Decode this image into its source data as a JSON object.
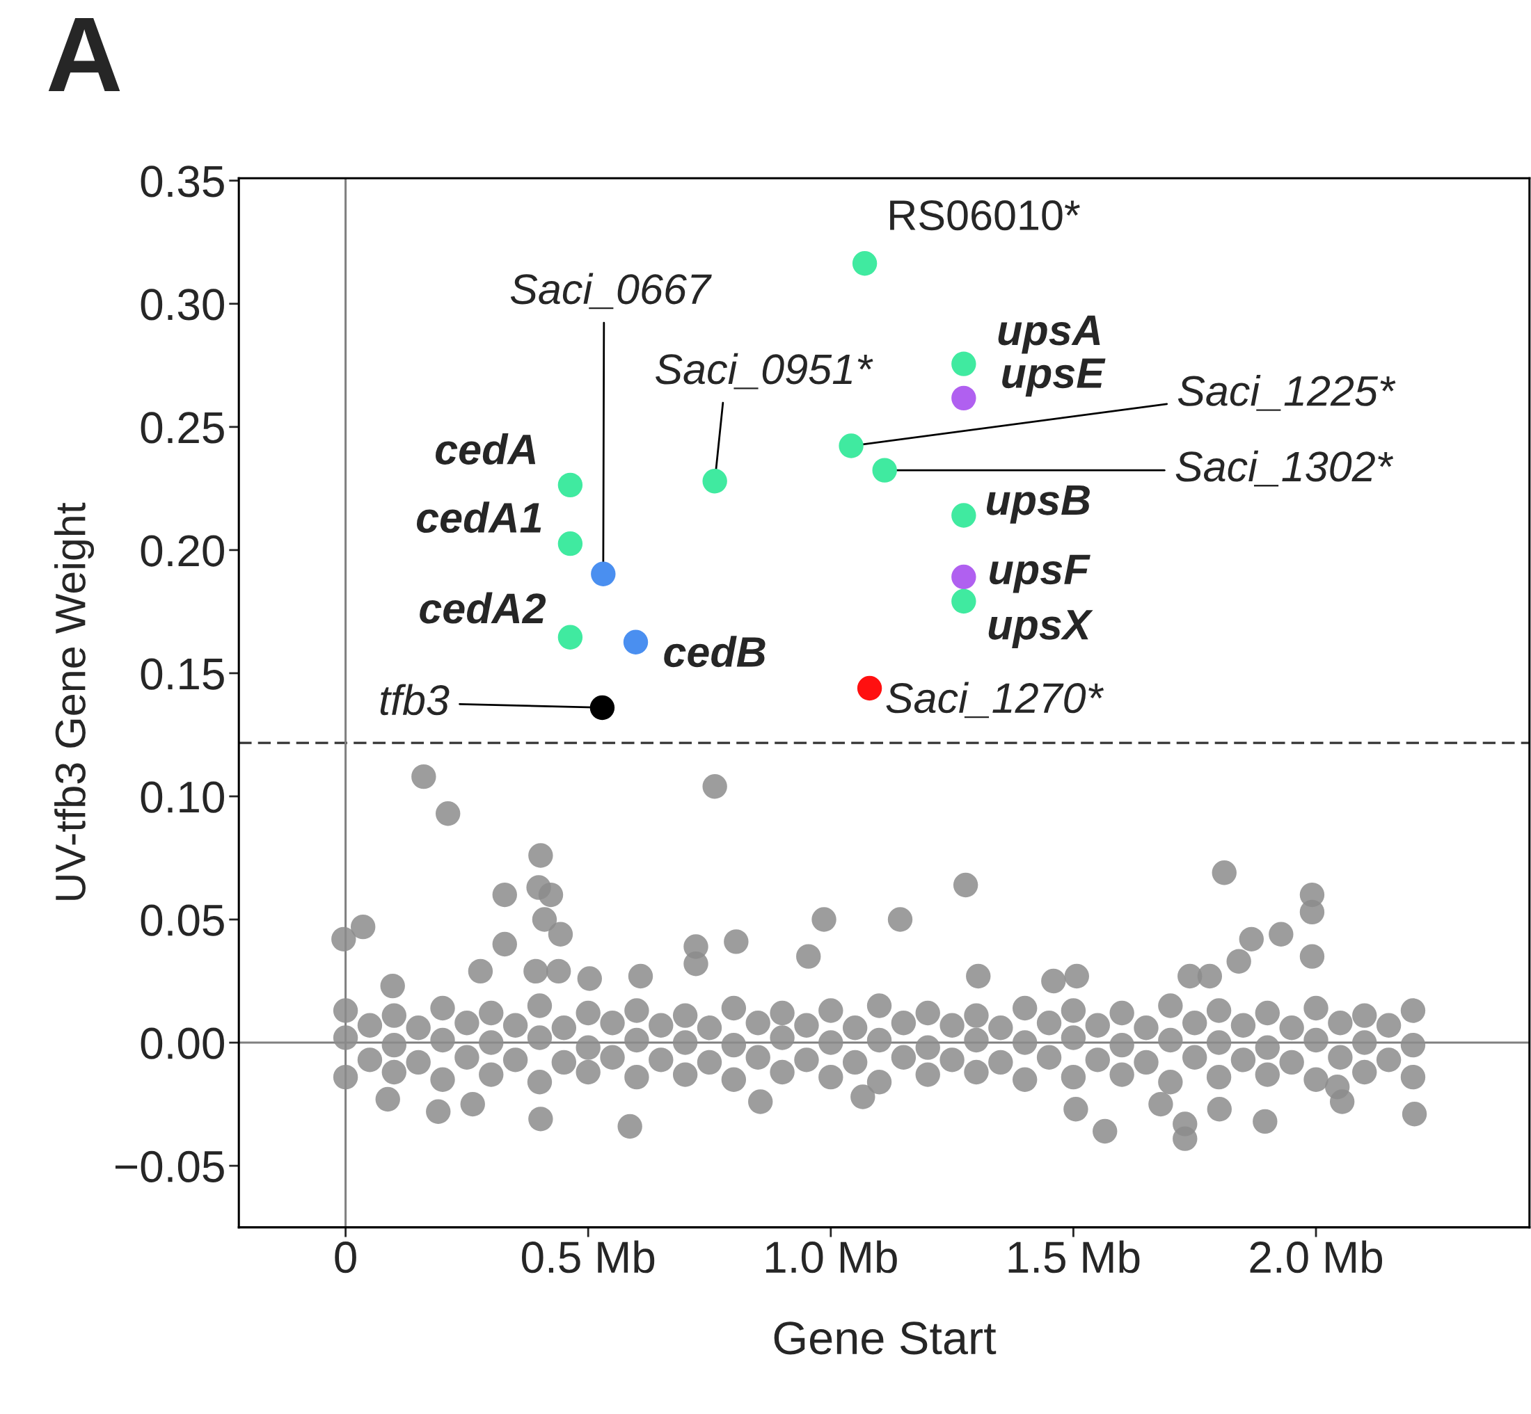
{
  "chart_data": {
    "type": "scatter",
    "title": "A",
    "xlabel": "Gene Start",
    "ylabel": "UV-tfb3 Gene Weight",
    "xlim": [
      -0.22,
      2.44
    ],
    "ylim": [
      -0.075,
      0.351
    ],
    "xticks": [
      0,
      {
        "value": 0.5,
        "label": "0.5 Mb"
      },
      {
        "value": 1.0,
        "label": "1.0 Mb"
      },
      {
        "value": 1.5,
        "label": "1.5 Mb"
      },
      {
        "value": 2.0,
        "label": "2.0 Mb"
      }
    ],
    "yticks": [
      {
        "value": -0.05,
        "label": "−0.05"
      },
      {
        "value": 0,
        "label": "0.00"
      },
      {
        "value": 0.05,
        "label": "0.05"
      },
      {
        "value": 0.1,
        "label": "0.10"
      },
      {
        "value": 0.15,
        "label": "0.15"
      },
      {
        "value": 0.2,
        "label": "0.20"
      },
      {
        "value": 0.25,
        "label": "0.25"
      },
      {
        "value": 0.3,
        "label": "0.30"
      },
      {
        "value": 0.35,
        "label": "0.35"
      }
    ],
    "grid": false,
    "legend": false,
    "marker": "circle",
    "ref_lines": [
      {
        "axis": "y",
        "value": 0.1217,
        "color": "#333333",
        "line_style": "dashed"
      },
      {
        "axis": "y",
        "value": 0,
        "color": "#808080",
        "line_style": "solid"
      },
      {
        "axis": "x",
        "value": 0,
        "color": "#808080",
        "line_style": "solid"
      }
    ],
    "series": [
      {
        "color": "#8c8c8c",
        "x": [
          -0.004,
          0.036,
          0.161,
          0.211,
          0.761,
          0.402,
          0.398,
          0.423,
          0.328,
          0.328,
          0.41,
          0.443,
          0.392,
          0.439,
          0.278,
          0.097,
          0.503,
          0.608,
          0.722,
          0.722,
          0.805,
          0.954,
          0.986,
          1.143,
          1.278,
          1.304,
          1.459,
          1.507,
          1.811,
          1.841,
          1.867,
          1.928,
          1.992,
          1.992,
          1.992,
          1.781,
          1.74,
          0.087,
          0.191,
          0.262,
          0.402,
          0.586,
          0.855,
          1.066,
          1.505,
          1.565,
          1.73,
          1.73,
          1.68,
          1.801,
          1.895,
          2.054,
          2.203,
          2.044
        ],
        "values": [
          0.042,
          0.047,
          0.108,
          0.093,
          0.104,
          0.076,
          0.063,
          0.06,
          0.06,
          0.04,
          0.05,
          0.044,
          0.029,
          0.029,
          0.029,
          0.023,
          0.026,
          0.027,
          0.039,
          0.032,
          0.041,
          0.035,
          0.05,
          0.05,
          0.064,
          0.027,
          0.025,
          0.027,
          0.069,
          0.033,
          0.042,
          0.044,
          0.06,
          0.053,
          0.035,
          0.027,
          0.027,
          -0.023,
          -0.028,
          -0.025,
          -0.031,
          -0.034,
          -0.024,
          -0.022,
          -0.027,
          -0.036,
          -0.039,
          -0.033,
          -0.025,
          -0.027,
          -0.032,
          -0.024,
          -0.029,
          -0.018
        ]
      },
      {
        "color": "#8c8c8c",
        "x": [
          0.0,
          0.1,
          0.2,
          0.3,
          0.4,
          0.5,
          0.6,
          0.7,
          0.8,
          0.9,
          1.0,
          1.1,
          1.2,
          1.3,
          1.4,
          1.5,
          1.6,
          1.7,
          1.8,
          1.9,
          2.0,
          2.1,
          2.2
        ],
        "values": [
          0.013,
          0.011,
          0.014,
          0.012,
          0.015,
          0.012,
          0.013,
          0.011,
          0.014,
          0.012,
          0.013,
          0.015,
          0.012,
          0.011,
          0.014,
          0.013,
          0.012,
          0.015,
          0.013,
          0.012,
          0.014,
          0.011,
          0.013
        ]
      },
      {
        "color": "#8c8c8c",
        "x": [
          0.0,
          0.1,
          0.2,
          0.3,
          0.4,
          0.5,
          0.6,
          0.7,
          0.8,
          0.9,
          1.0,
          1.1,
          1.2,
          1.3,
          1.4,
          1.5,
          1.6,
          1.7,
          1.8,
          1.9,
          2.0,
          2.1,
          2.2
        ],
        "values": [
          -0.014,
          -0.012,
          -0.015,
          -0.013,
          -0.016,
          -0.012,
          -0.014,
          -0.013,
          -0.015,
          -0.012,
          -0.014,
          -0.016,
          -0.013,
          -0.012,
          -0.015,
          -0.014,
          -0.013,
          -0.016,
          -0.014,
          -0.013,
          -0.015,
          -0.012,
          -0.014
        ]
      },
      {
        "color": "#8c8c8c",
        "x": [
          0.0,
          0.1,
          0.2,
          0.3,
          0.4,
          0.5,
          0.6,
          0.7,
          0.8,
          0.9,
          1.0,
          1.1,
          1.2,
          1.3,
          1.4,
          1.5,
          1.6,
          1.7,
          1.8,
          1.9,
          2.0,
          2.1,
          2.2
        ],
        "values": [
          0.002,
          -0.001,
          0.001,
          0.0,
          0.002,
          -0.002,
          0.001,
          0.0,
          -0.001,
          0.002,
          0.0,
          0.001,
          -0.002,
          0.001,
          0.0,
          0.002,
          -0.001,
          0.001,
          0.0,
          -0.002,
          0.001,
          0.0,
          -0.001
        ]
      },
      {
        "color": "#8c8c8c",
        "x": [
          0.05,
          0.15,
          0.25,
          0.35,
          0.45,
          0.55,
          0.65,
          0.75,
          0.85,
          0.95,
          1.05,
          1.15,
          1.25,
          1.35,
          1.45,
          1.55,
          1.65,
          1.75,
          1.85,
          1.95,
          2.05,
          2.15
        ],
        "values": [
          0.007,
          0.006,
          0.008,
          0.007,
          0.006,
          0.008,
          0.007,
          0.006,
          0.008,
          0.007,
          0.006,
          0.008,
          0.007,
          0.006,
          0.008,
          0.007,
          0.006,
          0.008,
          0.007,
          0.006,
          0.008,
          0.007
        ]
      },
      {
        "color": "#8c8c8c",
        "x": [
          0.05,
          0.15,
          0.25,
          0.35,
          0.45,
          0.55,
          0.65,
          0.75,
          0.85,
          0.95,
          1.05,
          1.15,
          1.25,
          1.35,
          1.45,
          1.55,
          1.65,
          1.75,
          1.85,
          1.95,
          2.05,
          2.15
        ],
        "values": [
          -0.007,
          -0.008,
          -0.006,
          -0.007,
          -0.008,
          -0.006,
          -0.007,
          -0.008,
          -0.006,
          -0.007,
          -0.008,
          -0.006,
          -0.007,
          -0.008,
          -0.006,
          -0.007,
          -0.008,
          -0.006,
          -0.007,
          -0.008,
          -0.006,
          -0.007
        ]
      },
      {
        "x": [
          1.07,
          1.274,
          1.274,
          1.042,
          1.111,
          0.761,
          0.463,
          0.463,
          0.531,
          1.274,
          1.274,
          1.274,
          0.463,
          0.598,
          1.08,
          0.529
        ],
        "values": [
          0.3164,
          0.2756,
          0.2617,
          0.2423,
          0.2324,
          0.228,
          0.2264,
          0.2026,
          0.1903,
          0.2141,
          0.1891,
          0.1792,
          0.1646,
          0.1626,
          0.1439,
          0.136
        ],
        "colors": [
          "#40eaa0",
          "#40eaa0",
          "#b060f0",
          "#40eaa0",
          "#40eaa0",
          "#40eaa0",
          "#40eaa0",
          "#40eaa0",
          "#4a8ff0",
          "#40eaa0",
          "#b060f0",
          "#40eaa0",
          "#40eaa0",
          "#4a8ff0",
          "#ff1010",
          "#000000"
        ]
      }
    ],
    "annotations": [
      {
        "text": "RS06010*",
        "x": 1.07,
        "y": 0.3164
      },
      {
        "text": "upsA",
        "x": 1.274,
        "y": 0.2756
      },
      {
        "text": "upsE",
        "x": 1.274,
        "y": 0.2617
      },
      {
        "text": "Saci_1225*",
        "x": 1.042,
        "y": 0.2423
      },
      {
        "text": "Saci_1302*",
        "x": 1.111,
        "y": 0.2324
      },
      {
        "text": "Saci_0951*",
        "x": 0.761,
        "y": 0.228
      },
      {
        "text": "cedA",
        "x": 0.463,
        "y": 0.2264
      },
      {
        "text": "cedA1",
        "x": 0.463,
        "y": 0.2026
      },
      {
        "text": "Saci_0667",
        "x": 0.531,
        "y": 0.1903
      },
      {
        "text": "upsB",
        "x": 1.274,
        "y": 0.2141
      },
      {
        "text": "upsF",
        "x": 1.274,
        "y": 0.1891
      },
      {
        "text": "upsX",
        "x": 1.274,
        "y": 0.1792
      },
      {
        "text": "cedA2",
        "x": 0.463,
        "y": 0.1646
      },
      {
        "text": "cedB",
        "x": 0.598,
        "y": 0.1626
      },
      {
        "text": "Saci_1270*",
        "x": 1.08,
        "y": 0.1439
      },
      {
        "text": "tfb3",
        "x": 0.529,
        "y": 0.136
      }
    ]
  }
}
